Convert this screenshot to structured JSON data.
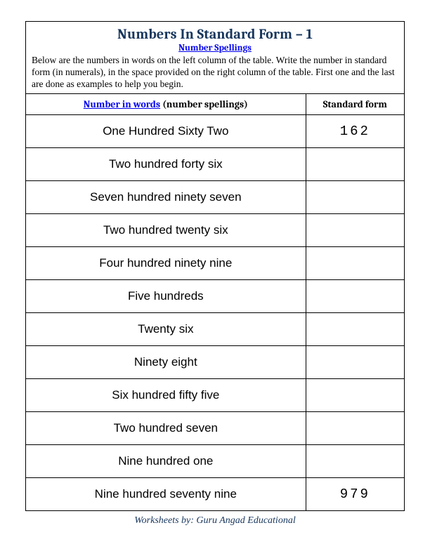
{
  "title": "Numbers In Standard Form – 1",
  "subtitle": "Number Spellings",
  "instructions": "Below are the numbers in words on the left column of the table. Write the number in standard form (in numerals), in the space provided on the right column of the table. First one and the last are done as examples to help you begin.",
  "columns": {
    "words_link": "Number in words",
    "words_plain": " (number spellings)",
    "standard": "Standard form"
  },
  "rows": [
    {
      "words": "One Hundred Sixty Two",
      "standard": "162"
    },
    {
      "words": "Two  hundred forty six",
      "standard": ""
    },
    {
      "words": "Seven hundred ninety seven",
      "standard": ""
    },
    {
      "words": "Two hundred twenty six",
      "standard": ""
    },
    {
      "words": "Four hundred ninety nine",
      "standard": ""
    },
    {
      "words": "Five hundreds",
      "standard": ""
    },
    {
      "words": "Twenty six",
      "standard": ""
    },
    {
      "words": "Ninety eight",
      "standard": ""
    },
    {
      "words": "Six hundred fifty five",
      "standard": ""
    },
    {
      "words": "Two hundred seven",
      "standard": ""
    },
    {
      "words": "Nine hundred one",
      "standard": ""
    },
    {
      "words": "Nine hundred seventy nine",
      "standard": "979"
    }
  ],
  "footer": "Worksheets by: Guru Angad Educational",
  "colors": {
    "title_color": "#17365d",
    "link_color": "#0000ee",
    "border_color": "#000000",
    "background": "#ffffff"
  }
}
